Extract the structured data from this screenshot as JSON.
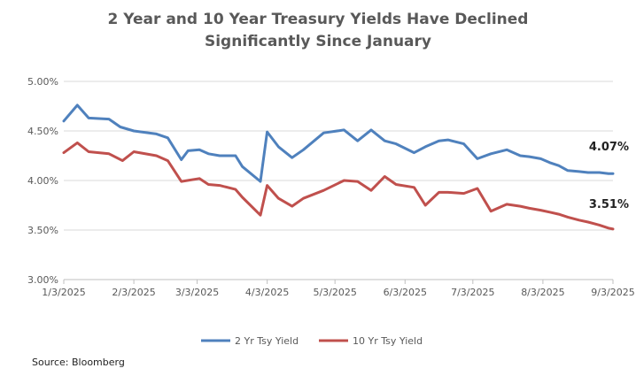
{
  "chart_data": {
    "type": "line",
    "title_line1": "2 Year and 10 Year Treasury Yields Have Declined",
    "title_line2": "Significantly Since January",
    "y_ticks": [
      "5.00%",
      "4.50%",
      "4.00%",
      "3.50%",
      "3.00%"
    ],
    "ylim": [
      3.0,
      5.0
    ],
    "x_ticks": [
      "1/3/2025",
      "2/3/2025",
      "3/3/2025",
      "4/3/2025",
      "5/3/2025",
      "6/3/2025",
      "7/3/2025",
      "8/3/2025",
      "9/3/2025"
    ],
    "x_tick_days": [
      0,
      31,
      59,
      90,
      120,
      151,
      181,
      212,
      243
    ],
    "grid": true,
    "legend_position": "bottom",
    "series": [
      {
        "name": "2 Yr Tsy Yield",
        "color": "#4f81bd",
        "x": [
          0,
          6,
          11,
          20,
          25,
          31,
          41,
          46,
          52,
          55,
          60,
          64,
          69,
          76,
          79,
          87,
          90,
          95,
          101,
          106,
          115,
          124,
          130,
          136,
          142,
          147,
          155,
          160,
          166,
          170,
          177,
          183,
          189,
          196,
          202,
          206,
          211,
          215,
          219,
          223,
          228,
          232,
          237,
          241,
          243
        ],
        "values": [
          4.6,
          4.76,
          4.63,
          4.62,
          4.54,
          4.5,
          4.47,
          4.43,
          4.21,
          4.3,
          4.31,
          4.27,
          4.25,
          4.25,
          4.14,
          3.99,
          4.49,
          4.34,
          4.23,
          4.31,
          4.48,
          4.51,
          4.4,
          4.51,
          4.4,
          4.37,
          4.28,
          4.34,
          4.4,
          4.41,
          4.37,
          4.22,
          4.27,
          4.31,
          4.25,
          4.24,
          4.22,
          4.18,
          4.15,
          4.1,
          4.09,
          4.08,
          4.08,
          4.07,
          4.07
        ],
        "end_label": "4.07%"
      },
      {
        "name": "10 Yr Tsy Yield",
        "color": "#c0504d",
        "x": [
          0,
          6,
          11,
          20,
          26,
          31,
          41,
          46,
          52,
          60,
          64,
          69,
          76,
          79,
          87,
          90,
          95,
          101,
          106,
          115,
          124,
          130,
          136,
          142,
          147,
          155,
          160,
          166,
          170,
          177,
          183,
          189,
          196,
          202,
          206,
          211,
          215,
          219,
          223,
          228,
          232,
          237,
          241,
          243
        ],
        "values": [
          4.28,
          4.38,
          4.29,
          4.27,
          4.2,
          4.29,
          4.25,
          4.2,
          3.99,
          4.02,
          3.96,
          3.95,
          3.91,
          3.83,
          3.65,
          3.95,
          3.82,
          3.74,
          3.82,
          3.9,
          4.0,
          3.99,
          3.9,
          4.04,
          3.96,
          3.93,
          3.75,
          3.88,
          3.88,
          3.87,
          3.92,
          3.69,
          3.76,
          3.74,
          3.72,
          3.7,
          3.68,
          3.66,
          3.63,
          3.6,
          3.58,
          3.55,
          3.52,
          3.51
        ],
        "end_label": "3.51%"
      }
    ]
  },
  "source_text": "Source:  Bloomberg"
}
